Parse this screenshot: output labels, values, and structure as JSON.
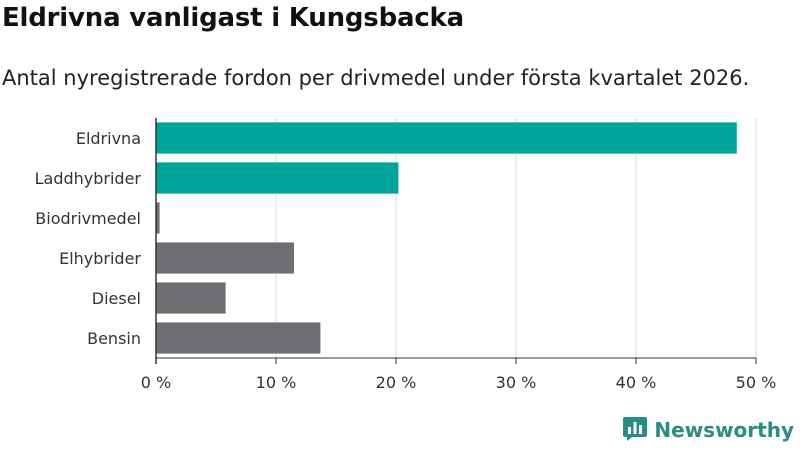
{
  "header": {
    "title": "Eldrivna vanligast i Kungsbacka",
    "subtitle": "Antal nyregistrerade fordon per drivmedel under första kvartalet 2026."
  },
  "chart_data": {
    "type": "bar",
    "orientation": "horizontal",
    "title": "Eldrivna vanligast i Kungsbacka",
    "subtitle": "Antal nyregistrerade fordon per drivmedel under första kvartalet 2026.",
    "categories": [
      "Eldrivna",
      "Laddhybrider",
      "Biodrivmedel",
      "Elhybrider",
      "Diesel",
      "Bensin"
    ],
    "values": [
      48.4,
      20.2,
      0.3,
      11.5,
      5.8,
      13.7
    ],
    "bar_colors": [
      "#00a49a",
      "#00a49a",
      "#6e6e73",
      "#6e6e73",
      "#6e6e73",
      "#6e6e73"
    ],
    "xlim": [
      0,
      50
    ],
    "xticks": [
      0,
      10,
      20,
      30,
      40,
      50
    ],
    "xtick_labels": [
      "0 %",
      "10 %",
      "20 %",
      "30 %",
      "40 %",
      "50 %"
    ],
    "xlabel": "",
    "ylabel": "",
    "grid": true
  },
  "footer": {
    "brand": "Newsworthy",
    "logo_icon": "newsworthy-logo-icon",
    "brand_color": "#2a8c86"
  }
}
